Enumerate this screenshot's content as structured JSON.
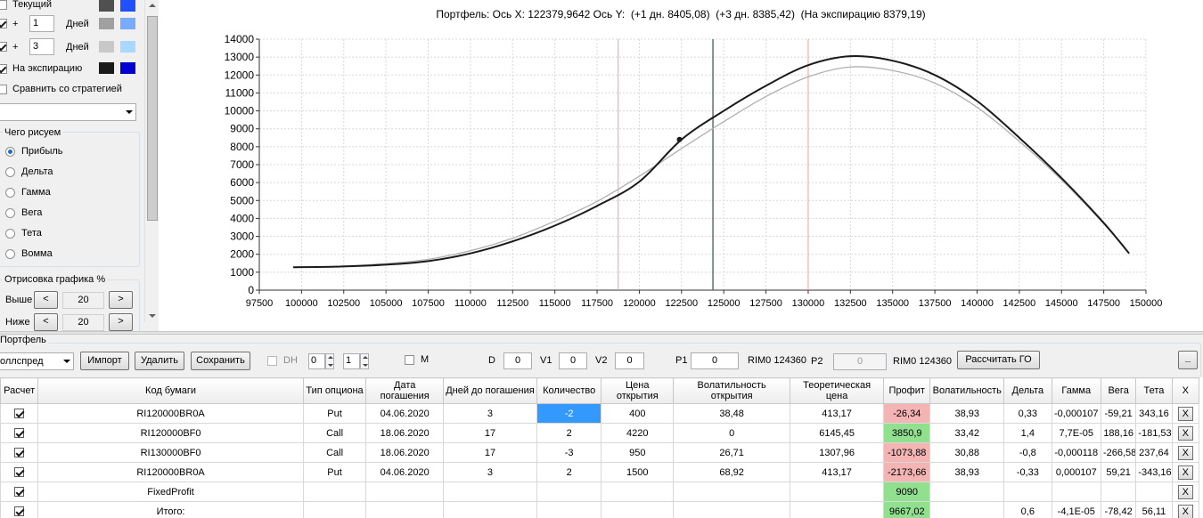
{
  "left_panel": {
    "rows": [
      {
        "label": "Текущий",
        "checked": false
      },
      {
        "prefix": "+",
        "value": "1",
        "unit": "Дней",
        "checked": true
      },
      {
        "prefix": "+",
        "value": "3",
        "unit": "Дней",
        "checked": true
      },
      {
        "label": "На экспирацию",
        "checked": true
      },
      {
        "label": "Сравнить со стратегией",
        "checked": false
      }
    ],
    "swatches": [
      [
        "#505050",
        "#2050ff"
      ],
      [
        "#a0a0a0",
        "#78aaff"
      ],
      [
        "#c8c8c8",
        "#a8d8ff"
      ],
      [
        "#1a1a1a",
        "#0000d0"
      ]
    ],
    "draw_group": {
      "title": "Чего рисуем",
      "options": [
        "Прибыль",
        "Дельта",
        "Гамма",
        "Вега",
        "Тета",
        "Вомма"
      ],
      "selected": 0
    },
    "render_group": {
      "title": "Отрисовка графика %",
      "above_label": "Выше",
      "above_value": "20",
      "below_label": "Ниже",
      "below_value": "20",
      "dec": "<",
      "inc": ">"
    }
  },
  "chart_title": "Портфель: Ось X: 122379,9642 Ось Y:  (+1 дн. 8405,08)  (+3 дн. 8385,42)  (На экспирацию 8379,19)",
  "chart_data": {
    "type": "line",
    "xlim": [
      97500,
      150000
    ],
    "ylim": [
      0,
      14000
    ],
    "xticks": [
      "97500",
      "100000",
      "102500",
      "105000",
      "107500",
      "110000",
      "112500",
      "115000",
      "117500",
      "120000",
      "122500",
      "125000",
      "127500",
      "130000",
      "132500",
      "135000",
      "137500",
      "140000",
      "142500",
      "145000",
      "147500",
      "150000"
    ],
    "yticks": [
      "0",
      "1000",
      "2000",
      "3000",
      "4000",
      "5000",
      "6000",
      "7000",
      "8000",
      "9000",
      "10000",
      "11000",
      "12000",
      "13000",
      "14000"
    ],
    "vlines": [
      {
        "x": 118750,
        "color": "#f2a0a0"
      },
      {
        "x": 124360,
        "color": "#607070"
      },
      {
        "x": 130000,
        "color": "#f2a0a0"
      }
    ],
    "marker": {
      "x": 122380,
      "y": 8400
    },
    "series": [
      {
        "color": "#b0b0b0",
        "x": [
          99500,
          102000,
          105000,
          107500,
          110000,
          112500,
          115000,
          117500,
          120000,
          122500,
          125000,
          127500,
          130000,
          132500,
          135000,
          137500,
          140000,
          142500,
          145000,
          147500,
          149000
        ],
        "y": [
          1260,
          1320,
          1480,
          1720,
          2200,
          2900,
          3850,
          4950,
          6350,
          7900,
          9400,
          10800,
          11900,
          12450,
          12250,
          11550,
          10200,
          8300,
          6150,
          3700,
          2050
        ]
      },
      {
        "color": "#1a1a1a",
        "x": [
          99500,
          102000,
          105000,
          107500,
          110000,
          112500,
          115000,
          117500,
          120000,
          122500,
          125000,
          127500,
          130000,
          132500,
          135000,
          137500,
          140000,
          142500,
          145000,
          147500,
          149000
        ],
        "y": [
          1280,
          1310,
          1420,
          1620,
          2050,
          2720,
          3600,
          4700,
          6050,
          8400,
          10000,
          11400,
          12550,
          13050,
          12800,
          12000,
          10550,
          8500,
          6250,
          3750,
          2050
        ]
      }
    ]
  },
  "portfolio": {
    "section_title": "Портфель",
    "strategy_value": "оллспред",
    "import_label": "Импорт",
    "delete_label": "Удалить",
    "save_label": "Сохранить",
    "dh_label": "DH",
    "spin1_value": "0",
    "spin2_value": "1",
    "m_label": "M",
    "d_label": "D",
    "d_value": "0",
    "v1_label": "V1",
    "v1_value": "0",
    "v2_label": "V2",
    "v2_value": "0",
    "p1_label": "P1",
    "p1_value": "0",
    "instrument1": "RIM0 124360",
    "p2_label": "P2",
    "p2_value": "0",
    "instrument2": "RIM0 124360",
    "calc_go_label": "Рассчитать ГО",
    "minimize_label": "_"
  },
  "grid": {
    "columns": [
      "Расчет",
      "Код бумаги",
      "Тип опциона",
      "Дата погашения",
      "Дней до погашения",
      "Количество",
      "Цена открытия",
      "Волатильность открытия",
      "Теоретическая цена",
      "Профит",
      "Волатильность",
      "Дельта",
      "Гамма",
      "Вега",
      "Тета",
      "X"
    ],
    "rows": [
      {
        "checked": true,
        "cells": [
          "RI120000BR0A",
          "Put",
          "04.06.2020",
          "3",
          "-2",
          "400",
          "38,48",
          "413,17",
          "-26,34",
          "38,93",
          "0,33",
          "-0,000107",
          "-59,21",
          "343,16"
        ],
        "profit_class": "neg",
        "qty_selected": true
      },
      {
        "checked": true,
        "cells": [
          "RI120000BF0",
          "Call",
          "18.06.2020",
          "17",
          "2",
          "4220",
          "0",
          "6145,45",
          "3850,9",
          "33,42",
          "1,4",
          "7,7E-05",
          "188,16",
          "-181,53"
        ],
        "profit_class": "pos"
      },
      {
        "checked": true,
        "cells": [
          "RI130000BF0",
          "Call",
          "18.06.2020",
          "17",
          "-3",
          "950",
          "26,71",
          "1307,96",
          "-1073,88",
          "30,88",
          "-0,8",
          "-0,000118",
          "-266,58",
          "237,64"
        ],
        "profit_class": "neg"
      },
      {
        "checked": true,
        "cells": [
          "RI120000BR0A",
          "Put",
          "04.06.2020",
          "3",
          "2",
          "1500",
          "68,92",
          "413,17",
          "-2173,66",
          "38,93",
          "-0,33",
          "0,000107",
          "59,21",
          "-343,16"
        ],
        "profit_class": "neg"
      },
      {
        "checked": true,
        "cells": [
          "FixedProfit",
          "",
          "",
          "",
          "",
          "",
          "",
          "",
          "9090",
          "",
          "",
          "",
          "",
          ""
        ],
        "profit_class": "pos"
      },
      {
        "checked": true,
        "cells": [
          "Итого:",
          "",
          "",
          "",
          "",
          "",
          "",
          "",
          "9667,02",
          "",
          "0,6",
          "-4,1E-05",
          "-78,42",
          "56,11"
        ],
        "profit_class": "pos"
      }
    ],
    "delete_label": "X"
  },
  "icons": {
    "checkbox": "check-icon",
    "scroll_up": "chevron-up-icon",
    "scroll_down": "chevron-down-icon"
  }
}
